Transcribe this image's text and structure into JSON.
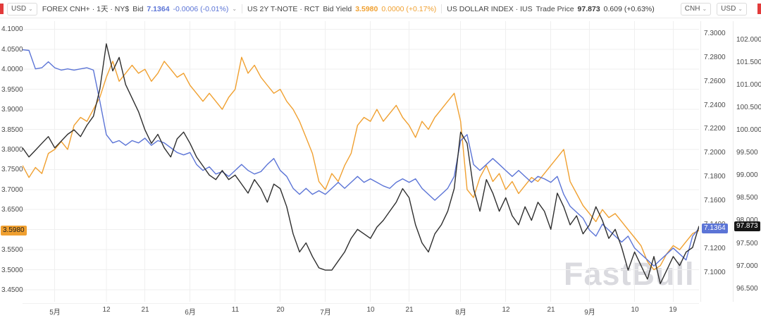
{
  "toolbar": {
    "left_axis_unit": "USD",
    "right_axis_units": [
      "CNH",
      "USD"
    ],
    "instruments": [
      {
        "title": "FOREX CNH+ · 1天 · NY$",
        "field": "Bid",
        "price": "7.1364",
        "change": "-0.0006 (-0.01%)",
        "color": "#5b74d6"
      },
      {
        "title": "US 2Y T-NOTE · RCT",
        "field": "Bid Yield",
        "price": "3.5980",
        "change": "0.0000 (+0.17%)",
        "color": "#f0a030"
      },
      {
        "title": "US DOLLAR INDEX · IUS",
        "field": "Trade Price",
        "price": "97.873",
        "change": "0.609 (+0.63%)",
        "color": "#3a3a3a"
      }
    ]
  },
  "chart_data": {
    "type": "line",
    "watermark": "FastBull",
    "x_ticks": [
      {
        "label": "5月",
        "index": 5
      },
      {
        "label": "12",
        "index": 13
      },
      {
        "label": "21",
        "index": 19
      },
      {
        "label": "6月",
        "index": 26
      },
      {
        "label": "11",
        "index": 33
      },
      {
        "label": "20",
        "index": 40
      },
      {
        "label": "7月",
        "index": 47
      },
      {
        "label": "10",
        "index": 54
      },
      {
        "label": "21",
        "index": 60
      },
      {
        "label": "8月",
        "index": 68
      },
      {
        "label": "12",
        "index": 75
      },
      {
        "label": "21",
        "index": 82
      },
      {
        "label": "9月",
        "index": 88
      },
      {
        "label": "10",
        "index": 95
      },
      {
        "label": "19",
        "index": 101
      }
    ],
    "axes": [
      {
        "id": "left",
        "side": "left",
        "unit": "USD",
        "min": 3.42,
        "max": 4.12,
        "grid": true,
        "ticks": [
          4.1,
          4.05,
          4.0,
          3.95,
          3.9,
          3.85,
          3.8,
          3.75,
          3.7,
          3.65,
          3.6,
          3.55,
          3.5,
          3.45
        ],
        "tick_labels": [
          "4.1000",
          "4.0500",
          "4.0000",
          "3.9500",
          "3.9000",
          "3.8500",
          "3.8000",
          "3.7500",
          "3.7000",
          "3.6500",
          "3.6000",
          "3.5500",
          "3.5000",
          "3.4500"
        ]
      },
      {
        "id": "cnh",
        "side": "right",
        "unit": "CNH",
        "min": 7.075,
        "max": 7.31,
        "grid": false,
        "ticks": [
          7.3,
          7.28,
          7.26,
          7.24,
          7.22,
          7.2,
          7.18,
          7.16,
          7.14,
          7.12,
          7.1
        ],
        "tick_labels": [
          "7.3000",
          "7.2800",
          "7.2600",
          "7.2400",
          "7.2200",
          "7.2000",
          "7.1800",
          "7.1600",
          "7.1400",
          "7.1200",
          "7.1000"
        ]
      },
      {
        "id": "usd",
        "side": "right",
        "unit": "USD",
        "min": 96.2,
        "max": 102.4,
        "grid": false,
        "ticks": [
          102.0,
          101.5,
          101.0,
          100.5,
          100.0,
          99.5,
          99.0,
          98.5,
          98.0,
          97.5,
          97.0,
          96.5
        ],
        "tick_labels": [
          "102.000",
          "101.500",
          "101.000",
          "100.500",
          "100.000",
          "99.500",
          "99.000",
          "98.500",
          "98.000",
          "97.500",
          "97.000",
          "96.500"
        ]
      }
    ],
    "series": [
      {
        "id": "us2y-yield",
        "name": "US 2Y T-NOTE Bid Yield",
        "axis": "left",
        "color": "#f0a030",
        "badge": {
          "label": "3.5980",
          "bg": "#f0a030",
          "fg": "#1d1d1d",
          "column": "left"
        },
        "values": [
          3.76,
          3.73,
          3.755,
          3.74,
          3.79,
          3.8,
          3.82,
          3.8,
          3.86,
          3.88,
          3.87,
          3.9,
          3.93,
          3.98,
          4.02,
          3.97,
          3.99,
          4.01,
          3.99,
          4.0,
          3.97,
          3.99,
          4.02,
          4.0,
          3.98,
          3.99,
          3.96,
          3.94,
          3.92,
          3.94,
          3.92,
          3.9,
          3.93,
          3.95,
          4.03,
          3.99,
          4.01,
          3.98,
          3.96,
          3.94,
          3.95,
          3.92,
          3.9,
          3.87,
          3.83,
          3.79,
          3.72,
          3.7,
          3.74,
          3.72,
          3.76,
          3.79,
          3.86,
          3.88,
          3.87,
          3.9,
          3.87,
          3.89,
          3.91,
          3.88,
          3.86,
          3.83,
          3.87,
          3.85,
          3.88,
          3.9,
          3.92,
          3.94,
          3.87,
          3.7,
          3.68,
          3.73,
          3.76,
          3.72,
          3.74,
          3.7,
          3.72,
          3.69,
          3.71,
          3.73,
          3.72,
          3.74,
          3.76,
          3.78,
          3.8,
          3.72,
          3.69,
          3.66,
          3.64,
          3.62,
          3.65,
          3.63,
          3.64,
          3.62,
          3.6,
          3.58,
          3.56,
          3.52,
          3.5,
          3.51,
          3.54,
          3.56,
          3.55,
          3.57,
          3.59,
          3.598
        ]
      },
      {
        "id": "usdcnh-bid",
        "name": "FOREX CNH Bid",
        "axis": "cnh",
        "color": "#5b74d6",
        "badge": {
          "label": "7.1364",
          "bg": "#5b74d6",
          "fg": "#ffffff",
          "column": "cnh"
        },
        "values": [
          7.286,
          7.2855,
          7.27,
          7.271,
          7.276,
          7.271,
          7.269,
          7.27,
          7.269,
          7.27,
          7.271,
          7.269,
          7.243,
          7.215,
          7.208,
          7.21,
          7.206,
          7.21,
          7.208,
          7.212,
          7.206,
          7.21,
          7.208,
          7.204,
          7.2,
          7.198,
          7.2,
          7.19,
          7.185,
          7.188,
          7.182,
          7.184,
          7.18,
          7.185,
          7.19,
          7.185,
          7.182,
          7.184,
          7.19,
          7.195,
          7.185,
          7.18,
          7.17,
          7.165,
          7.17,
          7.165,
          7.168,
          7.165,
          7.17,
          7.175,
          7.17,
          7.175,
          7.18,
          7.175,
          7.178,
          7.175,
          7.172,
          7.17,
          7.175,
          7.178,
          7.175,
          7.178,
          7.17,
          7.165,
          7.16,
          7.165,
          7.17,
          7.18,
          7.21,
          7.215,
          7.19,
          7.185,
          7.19,
          7.195,
          7.19,
          7.185,
          7.18,
          7.185,
          7.18,
          7.175,
          7.18,
          7.178,
          7.175,
          7.18,
          7.165,
          7.155,
          7.15,
          7.145,
          7.135,
          7.13,
          7.14,
          7.135,
          7.13,
          7.125,
          7.13,
          7.12,
          7.115,
          7.11,
          7.105,
          7.11,
          7.115,
          7.12,
          7.115,
          7.11,
          7.13,
          7.1364
        ]
      },
      {
        "id": "dollar-index",
        "name": "US DOLLAR INDEX Trade Price",
        "axis": "usd",
        "color": "#2e2e2e",
        "badge": {
          "label": "97.873",
          "bg": "#161616",
          "fg": "#ffffff",
          "column": "usd"
        },
        "values": [
          99.6,
          99.4,
          99.55,
          99.7,
          99.85,
          99.6,
          99.75,
          99.9,
          100.0,
          99.85,
          100.1,
          100.3,
          100.9,
          101.9,
          101.3,
          101.6,
          101.0,
          100.7,
          100.4,
          100.0,
          99.7,
          99.9,
          99.6,
          99.4,
          99.8,
          99.95,
          99.7,
          99.4,
          99.2,
          99.0,
          98.9,
          99.1,
          98.9,
          99.0,
          98.8,
          98.6,
          98.9,
          98.7,
          98.4,
          98.8,
          98.7,
          98.3,
          97.7,
          97.3,
          97.5,
          97.2,
          96.95,
          96.9,
          96.9,
          97.1,
          97.3,
          97.6,
          97.8,
          97.7,
          97.6,
          97.85,
          98.0,
          98.2,
          98.4,
          98.7,
          98.5,
          97.9,
          97.5,
          97.3,
          97.7,
          97.9,
          98.2,
          98.7,
          99.95,
          99.7,
          98.7,
          98.2,
          98.9,
          98.6,
          98.2,
          98.5,
          98.1,
          97.9,
          98.3,
          98.0,
          98.4,
          98.2,
          97.8,
          98.6,
          98.3,
          97.9,
          98.1,
          97.7,
          97.9,
          98.3,
          98.0,
          97.6,
          97.8,
          97.4,
          96.9,
          97.3,
          97.0,
          96.7,
          97.2,
          96.6,
          96.9,
          97.2,
          97.0,
          97.3,
          97.4,
          97.873
        ]
      }
    ]
  }
}
